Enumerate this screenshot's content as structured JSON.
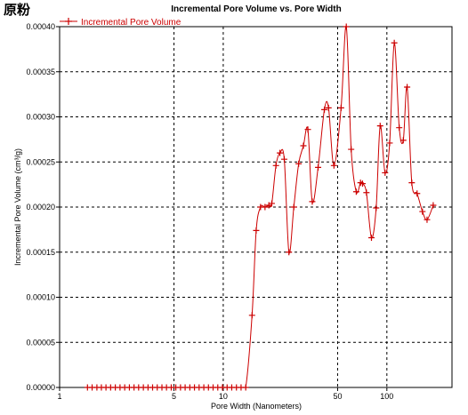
{
  "corner_label": "原粉",
  "chart_data": {
    "type": "line",
    "title": "Incremental Pore Volume vs. Pore Width",
    "xlabel": "Pore Width (Nanometers)",
    "ylabel": "Incremental Pore Volume (cm³/g)",
    "x_scale": "log",
    "xlim": [
      1,
      250
    ],
    "ylim": [
      0,
      0.0004
    ],
    "x_ticks": [
      1,
      5,
      10,
      50,
      100
    ],
    "x_tick_labels": [
      "1",
      "5",
      "10",
      "50",
      "100"
    ],
    "y_ticks": [
      0,
      5e-05,
      0.0001,
      0.00015,
      0.0002,
      0.00025,
      0.0003,
      0.00035,
      0.0004
    ],
    "y_tick_labels": [
      "0.00000",
      "0.00005",
      "0.00010",
      "0.00015",
      "0.00020",
      "0.00025",
      "0.00030",
      "0.00035",
      "0.00040"
    ],
    "grid": true,
    "legend_position": "top-left",
    "color": "#cc0000",
    "series": [
      {
        "name": "Incremental Pore Volume",
        "points": [
          [
            1.48,
            0
          ],
          [
            1.58,
            0
          ],
          [
            1.69,
            0
          ],
          [
            1.8,
            0
          ],
          [
            1.92,
            0
          ],
          [
            2.05,
            0
          ],
          [
            2.19,
            0
          ],
          [
            2.34,
            0
          ],
          [
            2.5,
            0
          ],
          [
            2.67,
            0
          ],
          [
            2.85,
            0
          ],
          [
            3.04,
            0
          ],
          [
            3.25,
            0
          ],
          [
            3.47,
            0
          ],
          [
            3.7,
            0
          ],
          [
            3.95,
            0
          ],
          [
            4.22,
            0
          ],
          [
            4.5,
            0
          ],
          [
            4.81,
            0
          ],
          [
            5.13,
            0
          ],
          [
            5.48,
            0
          ],
          [
            5.85,
            0
          ],
          [
            6.25,
            0
          ],
          [
            6.67,
            0
          ],
          [
            7.12,
            0
          ],
          [
            7.61,
            0
          ],
          [
            8.12,
            0
          ],
          [
            8.67,
            0
          ],
          [
            9.26,
            0
          ],
          [
            9.89,
            0
          ],
          [
            10.56,
            0
          ],
          [
            11.27,
            0
          ],
          [
            12.04,
            0
          ],
          [
            12.85,
            0
          ],
          [
            13.72,
            0
          ],
          [
            15.0,
            8e-05
          ],
          [
            15.9,
            0.000174
          ],
          [
            16.9,
            0.0002
          ],
          [
            18.0,
            0.0002
          ],
          [
            19.0,
            0.000202
          ],
          [
            19.8,
            0.000204
          ],
          [
            21.0,
            0.000246
          ],
          [
            22.2,
            0.00026
          ],
          [
            23.6,
            0.000253
          ],
          [
            25.2,
            0.00015
          ],
          [
            27.0,
            0.0002
          ],
          [
            28.9,
            0.000248
          ],
          [
            30.9,
            0.000268
          ],
          [
            32.9,
            0.000286
          ],
          [
            35.0,
            0.000206
          ],
          [
            38.0,
            0.000244
          ],
          [
            41.5,
            0.000308
          ],
          [
            44.0,
            0.00031
          ],
          [
            47.5,
            0.000246
          ],
          [
            52.5,
            0.00031
          ],
          [
            56.5,
            0.0004
          ],
          [
            60.5,
            0.000264
          ],
          [
            65.0,
            0.000217
          ],
          [
            69.0,
            0.000227
          ],
          [
            71.0,
            0.000226
          ],
          [
            75.0,
            0.000216
          ],
          [
            80.5,
            0.000166
          ],
          [
            86.0,
            0.000199
          ],
          [
            91.0,
            0.00029
          ],
          [
            97.5,
            0.000238
          ],
          [
            104.0,
            0.000271
          ],
          [
            111.0,
            0.000382
          ],
          [
            119.0,
            0.000288
          ],
          [
            126.0,
            0.000274
          ],
          [
            133.0,
            0.000333
          ],
          [
            142.0,
            0.000227
          ],
          [
            153.0,
            0.000215
          ],
          [
            165.0,
            0.000195
          ],
          [
            176.0,
            0.000186
          ],
          [
            192.0,
            0.000202
          ]
        ]
      }
    ]
  }
}
